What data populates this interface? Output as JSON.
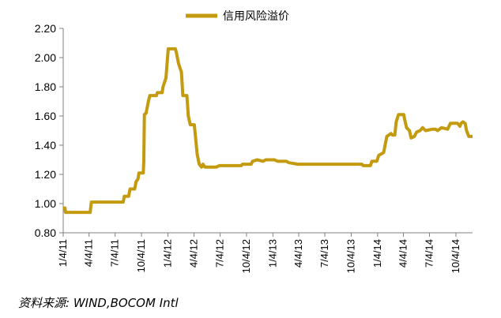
{
  "chart_data": {
    "type": "line",
    "legend": "top-center",
    "grid": false,
    "ylim": [
      0.8,
      2.2
    ],
    "yticks": [
      "0.80",
      "1.00",
      "1.20",
      "1.40",
      "1.60",
      "1.80",
      "2.00",
      "2.20"
    ],
    "xticks": [
      "1/4/11",
      "4/4/11",
      "7/4/11",
      "10/4/11",
      "1/4/12",
      "4/4/12",
      "7/4/12",
      "10/4/12",
      "1/4/13",
      "4/4/13",
      "7/4/13",
      "10/4/13",
      "1/4/14",
      "4/4/14",
      "7/4/14",
      "10/4/14"
    ],
    "series": [
      {
        "name": "信用风险溢价",
        "color": "#C49A0E",
        "points": [
          [
            "2011-01-04",
            0.97
          ],
          [
            "2011-01-10",
            0.97
          ],
          [
            "2011-01-12",
            0.94
          ],
          [
            "2011-02-15",
            0.94
          ],
          [
            "2011-03-20",
            0.94
          ],
          [
            "2011-04-08",
            0.94
          ],
          [
            "2011-04-12",
            1.01
          ],
          [
            "2011-05-20",
            1.01
          ],
          [
            "2011-07-20",
            1.01
          ],
          [
            "2011-08-01",
            1.01
          ],
          [
            "2011-08-05",
            1.05
          ],
          [
            "2011-08-20",
            1.05
          ],
          [
            "2011-08-25",
            1.1
          ],
          [
            "2011-09-10",
            1.1
          ],
          [
            "2011-09-15",
            1.15
          ],
          [
            "2011-09-22",
            1.17
          ],
          [
            "2011-09-25",
            1.21
          ],
          [
            "2011-10-10",
            1.21
          ],
          [
            "2011-10-12",
            1.29
          ],
          [
            "2011-10-14",
            1.61
          ],
          [
            "2011-10-20",
            1.62
          ],
          [
            "2011-10-28",
            1.7
          ],
          [
            "2011-11-02",
            1.74
          ],
          [
            "2011-11-25",
            1.74
          ],
          [
            "2011-11-28",
            1.76
          ],
          [
            "2011-12-15",
            1.76
          ],
          [
            "2011-12-18",
            1.8
          ],
          [
            "2011-12-28",
            1.86
          ],
          [
            "2012-01-05",
            2.06
          ],
          [
            "2012-01-30",
            2.06
          ],
          [
            "2012-02-03",
            2.03
          ],
          [
            "2012-02-10",
            1.96
          ],
          [
            "2012-02-20",
            1.9
          ],
          [
            "2012-02-25",
            1.74
          ],
          [
            "2012-03-10",
            1.74
          ],
          [
            "2012-03-15",
            1.6
          ],
          [
            "2012-03-22",
            1.54
          ],
          [
            "2012-04-05",
            1.54
          ],
          [
            "2012-04-15",
            1.34
          ],
          [
            "2012-04-22",
            1.27
          ],
          [
            "2012-04-30",
            1.25
          ],
          [
            "2012-05-05",
            1.27
          ],
          [
            "2012-05-12",
            1.25
          ],
          [
            "2012-06-20",
            1.25
          ],
          [
            "2012-07-01",
            1.26
          ],
          [
            "2012-09-15",
            1.26
          ],
          [
            "2012-09-20",
            1.27
          ],
          [
            "2012-10-20",
            1.27
          ],
          [
            "2012-10-25",
            1.29
          ],
          [
            "2012-11-10",
            1.3
          ],
          [
            "2012-12-01",
            1.29
          ],
          [
            "2012-12-10",
            1.3
          ],
          [
            "2013-01-10",
            1.3
          ],
          [
            "2013-01-20",
            1.29
          ],
          [
            "2013-02-20",
            1.29
          ],
          [
            "2013-03-01",
            1.28
          ],
          [
            "2013-04-01",
            1.27
          ],
          [
            "2013-07-01",
            1.27
          ],
          [
            "2013-10-01",
            1.27
          ],
          [
            "2013-11-10",
            1.27
          ],
          [
            "2013-11-15",
            1.26
          ],
          [
            "2013-12-10",
            1.26
          ],
          [
            "2013-12-15",
            1.29
          ],
          [
            "2014-01-01",
            1.29
          ],
          [
            "2014-01-08",
            1.33
          ],
          [
            "2014-01-25",
            1.35
          ],
          [
            "2014-02-05",
            1.46
          ],
          [
            "2014-02-20",
            1.48
          ],
          [
            "2014-02-25",
            1.47
          ],
          [
            "2014-03-05",
            1.47
          ],
          [
            "2014-03-10",
            1.56
          ],
          [
            "2014-03-18",
            1.61
          ],
          [
            "2014-04-05",
            1.61
          ],
          [
            "2014-04-10",
            1.56
          ],
          [
            "2014-04-15",
            1.52
          ],
          [
            "2014-04-25",
            1.5
          ],
          [
            "2014-05-01",
            1.45
          ],
          [
            "2014-05-12",
            1.46
          ],
          [
            "2014-05-20",
            1.49
          ],
          [
            "2014-06-01",
            1.5
          ],
          [
            "2014-06-10",
            1.52
          ],
          [
            "2014-06-20",
            1.5
          ],
          [
            "2014-07-15",
            1.51
          ],
          [
            "2014-07-25",
            1.51
          ],
          [
            "2014-08-01",
            1.5
          ],
          [
            "2014-08-15",
            1.52
          ],
          [
            "2014-09-05",
            1.51
          ],
          [
            "2014-09-15",
            1.55
          ],
          [
            "2014-10-10",
            1.55
          ],
          [
            "2014-10-18",
            1.53
          ],
          [
            "2014-10-22",
            1.55
          ],
          [
            "2014-10-28",
            1.56
          ],
          [
            "2014-11-05",
            1.55
          ],
          [
            "2014-11-10",
            1.5
          ],
          [
            "2014-11-18",
            1.46
          ],
          [
            "2014-12-01",
            1.46
          ]
        ]
      }
    ]
  },
  "source": "资料来源: WIND,BOCOM Intl"
}
